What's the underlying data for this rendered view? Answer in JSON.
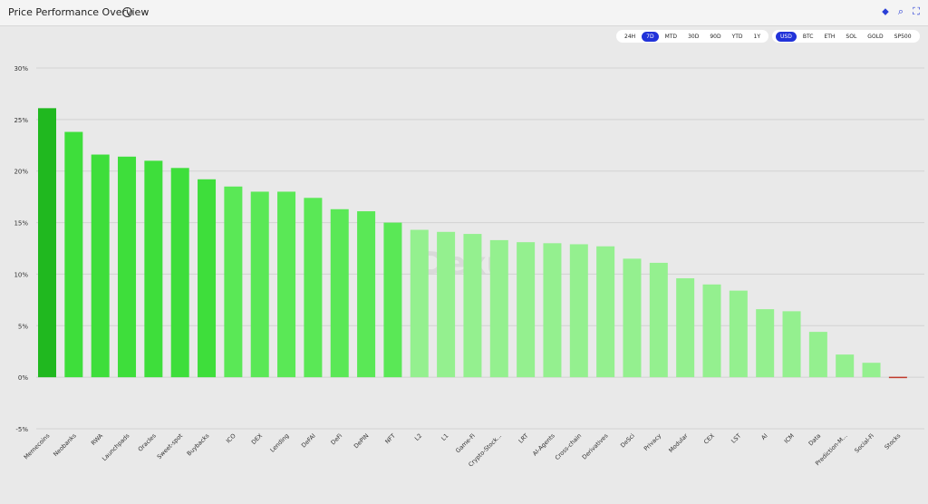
{
  "header": {
    "title": "Price Performance Overview",
    "info_icon": "info-icon"
  },
  "toolbar_icons": [
    "share-icon",
    "search-icon",
    "fullscreen-icon"
  ],
  "timeframes": {
    "options": [
      "24H",
      "7D",
      "MTD",
      "30D",
      "90D",
      "YTD",
      "1Y"
    ],
    "selected": "7D"
  },
  "currencies": {
    "options": [
      "USD",
      "BTC",
      "ETH",
      "SOL",
      "GOLD",
      "SP500"
    ],
    "selected": "USD"
  },
  "watermark": "Dexu",
  "chart_data": {
    "type": "bar",
    "categories": [
      "Memecoins",
      "Neobanks",
      "RWA",
      "Launchpads",
      "Oracles",
      "Sweet-spot",
      "Buybacks",
      "ICO",
      "DEX",
      "Lending",
      "DeFAI",
      "DeFi",
      "DePIN",
      "NFT",
      "L2",
      "L1",
      "Game-Fi",
      "Crypto-Stock...",
      "LRT",
      "AI-Agents",
      "Cross-chain",
      "Derivatives",
      "DeSci",
      "Privacy",
      "Modular",
      "CEX",
      "LST",
      "AI",
      "ICM",
      "Data",
      "Prediction-M...",
      "Social-Fi",
      "Stocks"
    ],
    "values": [
      26.1,
      23.8,
      21.6,
      21.4,
      21.0,
      20.3,
      19.2,
      18.5,
      18.0,
      18.0,
      17.4,
      16.3,
      16.1,
      15.0,
      14.3,
      14.1,
      13.9,
      13.3,
      13.1,
      13.0,
      12.9,
      12.7,
      11.5,
      11.1,
      9.6,
      9.0,
      8.4,
      6.6,
      6.4,
      4.4,
      2.2,
      1.4,
      -0.1
    ],
    "ylim": [
      -5,
      30
    ],
    "yticks": [
      "30%",
      "25%",
      "20%",
      "15%",
      "10%",
      "5%",
      "0%",
      "-5%"
    ],
    "grid": true,
    "colors": {
      "top": "#20b81f",
      "mid": "#3ede3b",
      "light": "#94f08f",
      "negative": "#c0392b"
    }
  }
}
